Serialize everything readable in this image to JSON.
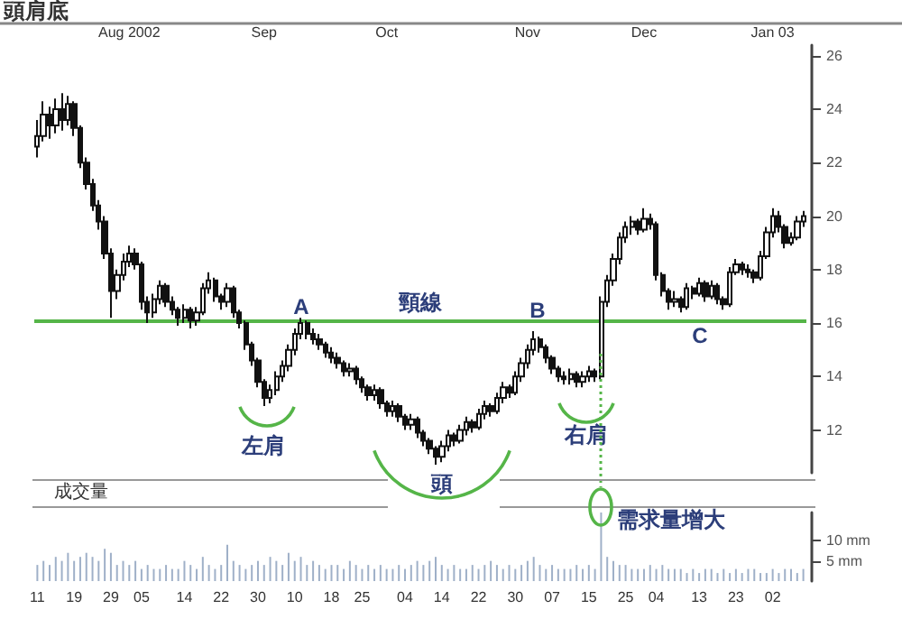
{
  "chart_data": [
    {
      "type": "candlestick",
      "title": "頭肩底",
      "categories": [
        null,
        null,
        null,
        null,
        null,
        null,
        null,
        null,
        null,
        null,
        null,
        null,
        null,
        null,
        null,
        "Aug 2002",
        null,
        null,
        null,
        null,
        null,
        null,
        null,
        null,
        null,
        null,
        null,
        null,
        null,
        null,
        null,
        null,
        null,
        null,
        null,
        null,
        null,
        "Sep",
        null,
        null,
        null,
        null,
        null,
        null,
        null,
        null,
        null,
        null,
        null,
        null,
        null,
        null,
        null,
        null,
        null,
        null,
        null,
        "Oct",
        null,
        null,
        null,
        null,
        null,
        null,
        null,
        null,
        null,
        null,
        null,
        null,
        null,
        null,
        null,
        null,
        null,
        null,
        null,
        null,
        null,
        null,
        "Nov",
        null,
        null,
        null,
        null,
        null,
        null,
        null,
        null,
        null,
        null,
        null,
        null,
        null,
        null,
        null,
        null,
        null,
        null,
        "Dec",
        null,
        null,
        null,
        null,
        null,
        null,
        null,
        null,
        null,
        null,
        null,
        null,
        null,
        null,
        null,
        null,
        null,
        null,
        null,
        null,
        "Jan 03",
        null,
        null,
        null,
        null,
        null
      ],
      "ohlc": [
        [
          22.6,
          23.6,
          22.2,
          23.0
        ],
        [
          23.0,
          24.3,
          22.8,
          23.8
        ],
        [
          23.8,
          24.1,
          22.9,
          23.4
        ],
        [
          23.4,
          24.4,
          23.1,
          24.0
        ],
        [
          24.0,
          24.6,
          23.2,
          23.6
        ],
        [
          23.6,
          24.5,
          23.4,
          24.2
        ],
        [
          24.2,
          24.3,
          23.0,
          23.3
        ],
        [
          23.3,
          23.4,
          21.8,
          22.0
        ],
        [
          22.0,
          22.2,
          21.0,
          21.2
        ],
        [
          21.2,
          21.4,
          20.2,
          20.4
        ],
        [
          20.4,
          20.6,
          19.5,
          19.8
        ],
        [
          19.8,
          20.0,
          18.4,
          18.6
        ],
        [
          18.6,
          18.8,
          16.2,
          17.2
        ],
        [
          17.2,
          18.0,
          16.9,
          17.8
        ],
        [
          17.8,
          18.6,
          17.6,
          18.3
        ],
        [
          18.3,
          18.9,
          18.1,
          18.6
        ],
        [
          18.6,
          18.8,
          18.0,
          18.2
        ],
        [
          18.2,
          18.3,
          16.5,
          16.8
        ],
        [
          16.8,
          17.0,
          16.0,
          16.4
        ],
        [
          16.4,
          17.1,
          16.2,
          16.9
        ],
        [
          16.9,
          17.6,
          16.7,
          17.4
        ],
        [
          17.4,
          17.5,
          16.6,
          16.8
        ],
        [
          16.8,
          17.0,
          16.3,
          16.5
        ],
        [
          16.5,
          16.6,
          15.9,
          16.2
        ],
        [
          16.2,
          16.7,
          16.0,
          16.5
        ],
        [
          16.5,
          16.6,
          15.8,
          16.1
        ],
        [
          16.1,
          16.6,
          15.9,
          16.4
        ],
        [
          16.4,
          17.5,
          16.3,
          17.3
        ],
        [
          17.3,
          17.9,
          17.1,
          17.6
        ],
        [
          17.6,
          17.7,
          16.8,
          17.0
        ],
        [
          17.0,
          17.1,
          16.5,
          16.8
        ],
        [
          16.8,
          17.5,
          16.6,
          17.3
        ],
        [
          17.3,
          17.4,
          16.2,
          16.4
        ],
        [
          16.4,
          16.5,
          15.8,
          16.0
        ],
        [
          16.0,
          16.1,
          15.0,
          15.2
        ],
        [
          15.2,
          15.3,
          14.4,
          14.6
        ],
        [
          14.6,
          14.7,
          13.6,
          13.8
        ],
        [
          13.8,
          13.9,
          12.9,
          13.2
        ],
        [
          13.2,
          13.7,
          13.0,
          13.5
        ],
        [
          13.5,
          14.2,
          13.3,
          14.0
        ],
        [
          14.0,
          14.6,
          13.8,
          14.4
        ],
        [
          14.4,
          15.2,
          14.2,
          15.0
        ],
        [
          15.0,
          15.8,
          14.8,
          15.6
        ],
        [
          15.6,
          16.2,
          15.4,
          16.0
        ],
        [
          16.0,
          16.1,
          15.4,
          15.6
        ],
        [
          15.6,
          15.8,
          15.2,
          15.4
        ],
        [
          15.4,
          15.6,
          15.0,
          15.2
        ],
        [
          15.2,
          15.3,
          14.7,
          14.9
        ],
        [
          14.9,
          15.1,
          14.5,
          14.7
        ],
        [
          14.7,
          14.9,
          14.3,
          14.5
        ],
        [
          14.5,
          14.6,
          14.0,
          14.2
        ],
        [
          14.2,
          14.5,
          14.0,
          14.3
        ],
        [
          14.3,
          14.4,
          13.7,
          13.9
        ],
        [
          13.9,
          14.0,
          13.4,
          13.6
        ],
        [
          13.6,
          13.7,
          13.1,
          13.3
        ],
        [
          13.3,
          13.7,
          13.1,
          13.5
        ],
        [
          13.5,
          13.6,
          12.8,
          13.0
        ],
        [
          13.0,
          13.1,
          12.5,
          12.7
        ],
        [
          12.7,
          13.1,
          12.5,
          12.9
        ],
        [
          12.9,
          13.0,
          12.3,
          12.5
        ],
        [
          12.5,
          12.6,
          12.0,
          12.2
        ],
        [
          12.2,
          12.6,
          12.0,
          12.4
        ],
        [
          12.4,
          12.5,
          11.7,
          11.9
        ],
        [
          11.9,
          12.0,
          11.4,
          11.6
        ],
        [
          11.6,
          11.7,
          11.1,
          11.3
        ],
        [
          11.3,
          11.4,
          10.7,
          11.0
        ],
        [
          11.0,
          11.6,
          10.8,
          11.4
        ],
        [
          11.4,
          12.0,
          11.2,
          11.8
        ],
        [
          11.8,
          11.9,
          11.4,
          11.6
        ],
        [
          11.6,
          12.2,
          11.5,
          12.0
        ],
        [
          12.0,
          12.5,
          11.8,
          12.3
        ],
        [
          12.3,
          12.4,
          11.9,
          12.1
        ],
        [
          12.1,
          12.8,
          12.0,
          12.6
        ],
        [
          12.6,
          13.1,
          12.4,
          12.9
        ],
        [
          12.9,
          13.0,
          12.5,
          12.7
        ],
        [
          12.7,
          13.4,
          12.6,
          13.2
        ],
        [
          13.2,
          13.8,
          13.0,
          13.6
        ],
        [
          13.6,
          13.7,
          13.2,
          13.4
        ],
        [
          13.4,
          14.2,
          13.3,
          14.0
        ],
        [
          14.0,
          14.7,
          13.8,
          14.5
        ],
        [
          14.5,
          15.2,
          14.3,
          15.0
        ],
        [
          15.0,
          15.7,
          14.8,
          15.4
        ],
        [
          15.4,
          15.5,
          14.9,
          15.1
        ],
        [
          15.1,
          15.2,
          14.5,
          14.7
        ],
        [
          14.7,
          14.8,
          14.1,
          14.3
        ],
        [
          14.3,
          14.4,
          13.8,
          14.0
        ],
        [
          14.0,
          14.2,
          13.7,
          13.9
        ],
        [
          13.9,
          14.3,
          13.7,
          14.1
        ],
        [
          14.1,
          14.2,
          13.6,
          13.8
        ],
        [
          13.8,
          14.2,
          13.6,
          14.0
        ],
        [
          14.0,
          14.4,
          13.8,
          14.2
        ],
        [
          14.2,
          14.3,
          13.8,
          14.0
        ],
        [
          14.0,
          17.0,
          13.9,
          16.8
        ],
        [
          16.8,
          17.8,
          16.6,
          17.6
        ],
        [
          17.6,
          18.6,
          17.4,
          18.4
        ],
        [
          18.4,
          19.4,
          18.2,
          19.2
        ],
        [
          19.2,
          19.8,
          19.0,
          19.6
        ],
        [
          19.6,
          20.0,
          19.3,
          19.8
        ],
        [
          19.8,
          19.9,
          19.3,
          19.5
        ],
        [
          19.5,
          20.3,
          19.4,
          19.9
        ],
        [
          19.9,
          20.1,
          19.5,
          19.7
        ],
        [
          19.7,
          19.8,
          17.6,
          17.8
        ],
        [
          17.8,
          17.9,
          17.0,
          17.2
        ],
        [
          17.2,
          17.3,
          16.5,
          16.8
        ],
        [
          16.8,
          17.2,
          16.6,
          16.9
        ],
        [
          16.9,
          17.0,
          16.4,
          16.6
        ],
        [
          16.6,
          17.5,
          16.5,
          17.3
        ],
        [
          17.3,
          17.4,
          16.9,
          17.1
        ],
        [
          17.1,
          17.7,
          17.0,
          17.5
        ],
        [
          17.5,
          17.6,
          16.8,
          17.0
        ],
        [
          17.0,
          17.6,
          16.9,
          17.4
        ],
        [
          17.4,
          17.5,
          16.7,
          16.9
        ],
        [
          16.9,
          17.0,
          16.5,
          16.7
        ],
        [
          16.7,
          18.1,
          16.6,
          17.9
        ],
        [
          17.9,
          18.4,
          17.8,
          18.2
        ],
        [
          18.2,
          18.3,
          17.8,
          18.0
        ],
        [
          18.0,
          18.2,
          17.7,
          17.9
        ],
        [
          17.9,
          18.0,
          17.5,
          17.7
        ],
        [
          17.7,
          18.7,
          17.6,
          18.5
        ],
        [
          18.5,
          19.6,
          18.4,
          19.4
        ],
        [
          19.4,
          20.3,
          19.2,
          20.0
        ],
        [
          20.0,
          20.2,
          19.4,
          19.6
        ],
        [
          19.6,
          19.7,
          18.8,
          19.0
        ],
        [
          19.0,
          19.4,
          18.9,
          19.2
        ],
        [
          19.2,
          20.0,
          19.1,
          19.8
        ],
        [
          19.8,
          20.2,
          19.6,
          20.0
        ]
      ],
      "ylim": [
        10.4,
        26.4
      ],
      "yticks": [
        12,
        14,
        16,
        18,
        20,
        22,
        24,
        26
      ],
      "ref_lines": [
        {
          "axis": "y",
          "value": 16.1,
          "label": "頸線",
          "color": "#55b548"
        }
      ],
      "annotations": [
        "A",
        "B",
        "C",
        "左肩",
        "頭",
        "右肩"
      ]
    },
    {
      "type": "bar",
      "title": "成交量",
      "categories": [
        "11",
        null,
        null,
        null,
        null,
        null,
        "19",
        null,
        null,
        null,
        null,
        null,
        "29",
        null,
        null,
        null,
        null,
        "05",
        null,
        null,
        null,
        null,
        null,
        null,
        "14",
        null,
        null,
        null,
        null,
        null,
        "22",
        null,
        null,
        null,
        null,
        null,
        "30",
        null,
        null,
        null,
        null,
        null,
        "10",
        null,
        null,
        null,
        null,
        null,
        "18",
        null,
        null,
        null,
        null,
        "25",
        null,
        null,
        null,
        null,
        null,
        null,
        "04",
        null,
        null,
        null,
        null,
        null,
        "14",
        null,
        null,
        null,
        null,
        null,
        "22",
        null,
        null,
        null,
        null,
        null,
        "30",
        null,
        null,
        null,
        null,
        null,
        "07",
        null,
        null,
        null,
        null,
        null,
        "15",
        null,
        null,
        null,
        null,
        null,
        "25",
        null,
        null,
        null,
        null,
        "04",
        null,
        null,
        null,
        null,
        null,
        null,
        "13",
        null,
        null,
        null,
        null,
        null,
        "23",
        null,
        null,
        null,
        null,
        null,
        "02",
        null,
        null,
        null,
        null,
        null
      ],
      "series": [
        {
          "color": "#9fb0c8",
          "values": [
            4,
            5,
            4,
            6,
            5,
            7,
            5,
            6,
            7,
            6,
            5,
            8,
            7,
            4,
            5,
            4,
            5,
            3,
            4,
            3,
            3,
            4,
            3,
            3,
            5,
            4,
            3,
            6,
            4,
            3,
            4,
            9,
            5,
            4,
            3,
            4,
            5,
            4,
            6,
            5,
            4,
            7,
            5,
            6,
            4,
            5,
            4,
            3,
            4,
            4,
            3,
            5,
            4,
            3,
            4,
            3,
            4,
            3,
            3,
            4,
            3,
            4,
            5,
            4,
            5,
            6,
            4,
            3,
            4,
            3,
            3,
            4,
            3,
            4,
            5,
            4,
            3,
            4,
            3,
            4,
            5,
            6,
            4,
            3,
            4,
            3,
            3,
            3,
            4,
            3,
            4,
            3,
            17,
            6,
            5,
            4,
            4,
            3,
            3,
            3,
            4,
            3,
            4,
            3,
            3,
            3,
            2,
            3,
            2,
            3,
            3,
            2,
            3,
            2,
            3,
            2,
            3,
            3,
            2,
            2,
            3,
            2,
            3,
            3,
            2,
            3
          ]
        }
      ],
      "ylim": [
        0,
        17
      ],
      "yticks": [
        {
          "value": 5,
          "label": "5 mm"
        },
        {
          "value": 10,
          "label": "10 mm"
        }
      ],
      "annotations": [
        "需求量增大"
      ]
    }
  ]
}
